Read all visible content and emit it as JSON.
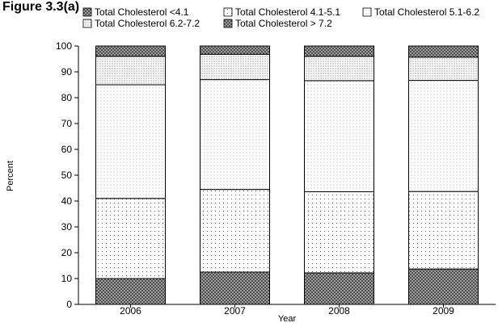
{
  "title": "Figure 3.3(a)",
  "chart_data": {
    "type": "bar",
    "stacked": true,
    "categories": [
      "2006",
      "2007",
      "2008",
      "2009"
    ],
    "series": [
      {
        "name": "Total Cholesterol <4.1",
        "values": [
          10,
          12.5,
          12.2,
          13.7
        ],
        "pattern": "crosshatch-dense"
      },
      {
        "name": "Total Cholesterol 4.1-5.1",
        "values": [
          31,
          32,
          31.4,
          30
        ],
        "pattern": "dots-sparse"
      },
      {
        "name": "Total Cholesterol 5.1-6.2",
        "values": [
          44,
          42.5,
          43,
          43
        ],
        "pattern": "dots-fine"
      },
      {
        "name": "Total Cholesterol 6.2-7.2",
        "values": [
          11,
          9.8,
          9.4,
          9
        ],
        "pattern": "dots-medium"
      },
      {
        "name": "Total Cholesterol > 7.2",
        "values": [
          4,
          3.2,
          4,
          4.3
        ],
        "pattern": "crosshatch-dense"
      }
    ],
    "xlabel": "Year",
    "ylabel": "Percent",
    "ylim": [
      0,
      100
    ],
    "yticks": [
      0,
      10,
      20,
      30,
      40,
      50,
      60,
      70,
      80,
      90,
      100
    ],
    "grid": false,
    "legend_position": "top"
  }
}
